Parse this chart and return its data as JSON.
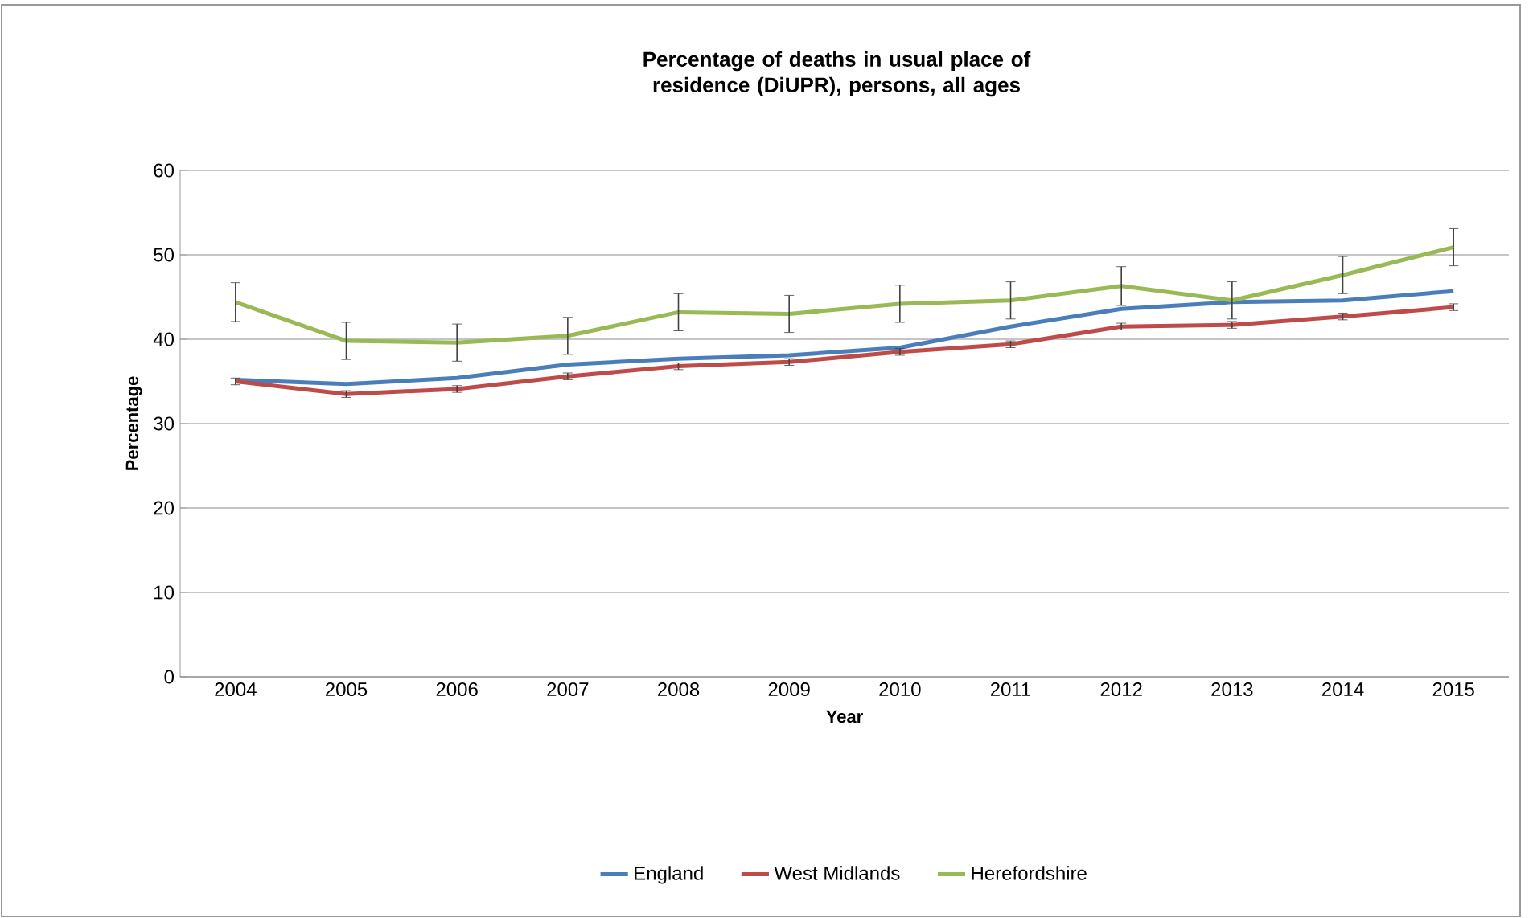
{
  "chart_data": {
    "type": "line",
    "title": "Percentage of deaths in usual place of residence (DiUPR), persons, all ages",
    "xlabel": "Year",
    "ylabel": "Percentage",
    "categories": [
      "2004",
      "2005",
      "2006",
      "2007",
      "2008",
      "2009",
      "2010",
      "2011",
      "2012",
      "2013",
      "2014",
      "2015"
    ],
    "series": [
      {
        "name": "England",
        "color": "#4a7ebb",
        "values": [
          35.2,
          34.7,
          35.4,
          37.0,
          37.7,
          38.1,
          39.0,
          41.5,
          43.6,
          44.4,
          44.6,
          45.7
        ]
      },
      {
        "name": "West Midlands",
        "color": "#be4b48",
        "values": [
          35.0,
          33.5,
          34.1,
          35.6,
          36.8,
          37.3,
          38.5,
          39.4,
          41.5,
          41.7,
          42.7,
          43.8
        ],
        "errors": [
          0.4,
          0.4,
          0.4,
          0.4,
          0.4,
          0.4,
          0.4,
          0.4,
          0.4,
          0.4,
          0.4,
          0.4
        ]
      },
      {
        "name": "Herefordshire",
        "color": "#98b954",
        "values": [
          44.4,
          39.8,
          39.6,
          40.4,
          43.2,
          43.0,
          44.2,
          44.6,
          46.3,
          44.6,
          47.6,
          50.9
        ],
        "errors": [
          2.3,
          2.2,
          2.2,
          2.2,
          2.2,
          2.2,
          2.2,
          2.2,
          2.3,
          2.2,
          2.2,
          2.2
        ]
      }
    ],
    "ylim": [
      0,
      60
    ],
    "yticks": [
      0,
      10,
      20,
      30,
      40,
      50,
      60
    ],
    "grid": "y",
    "legend": "bottom",
    "marker": "none",
    "line_style": "solid"
  }
}
